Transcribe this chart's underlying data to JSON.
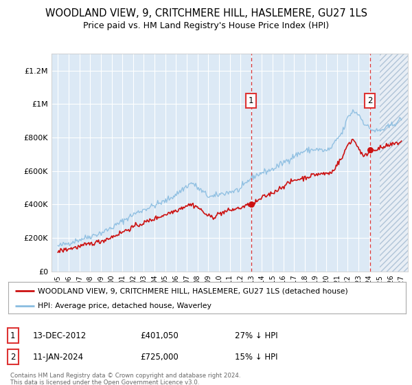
{
  "title": "WOODLAND VIEW, 9, CRITCHMERE HILL, HASLEMERE, GU27 1LS",
  "subtitle": "Price paid vs. HM Land Registry's House Price Index (HPI)",
  "title_fontsize": 10.5,
  "subtitle_fontsize": 9,
  "background_color": "#ffffff",
  "plot_bg_color": "#dce9f5",
  "grid_color": "#ffffff",
  "hpi_color": "#89bce0",
  "price_color": "#cc1111",
  "vline_color": "#dd3333",
  "ylim": [
    0,
    1300000
  ],
  "yticks": [
    0,
    200000,
    400000,
    600000,
    800000,
    1000000,
    1200000
  ],
  "ytick_labels": [
    "£0",
    "£200K",
    "£400K",
    "£600K",
    "£800K",
    "£1M",
    "£1.2M"
  ],
  "legend_label_price": "WOODLAND VIEW, 9, CRITCHMERE HILL, HASLEMERE, GU27 1LS (detached house)",
  "legend_label_hpi": "HPI: Average price, detached house, Waverley",
  "sale1_label": "1",
  "sale1_date": "13-DEC-2012",
  "sale1_price": "£401,050",
  "sale1_hpi": "27% ↓ HPI",
  "sale2_label": "2",
  "sale2_date": "11-JAN-2024",
  "sale2_price": "£725,000",
  "sale2_hpi": "15% ↓ HPI",
  "footer": "Contains HM Land Registry data © Crown copyright and database right 2024.\nThis data is licensed under the Open Government Licence v3.0.",
  "sale1_year": 2013.0,
  "sale2_year": 2024.05,
  "sale1_price_val": 401050,
  "sale2_price_val": 725000,
  "hatch_start": 2025.0,
  "xlim_left": 1994.4,
  "xlim_right": 2027.6
}
